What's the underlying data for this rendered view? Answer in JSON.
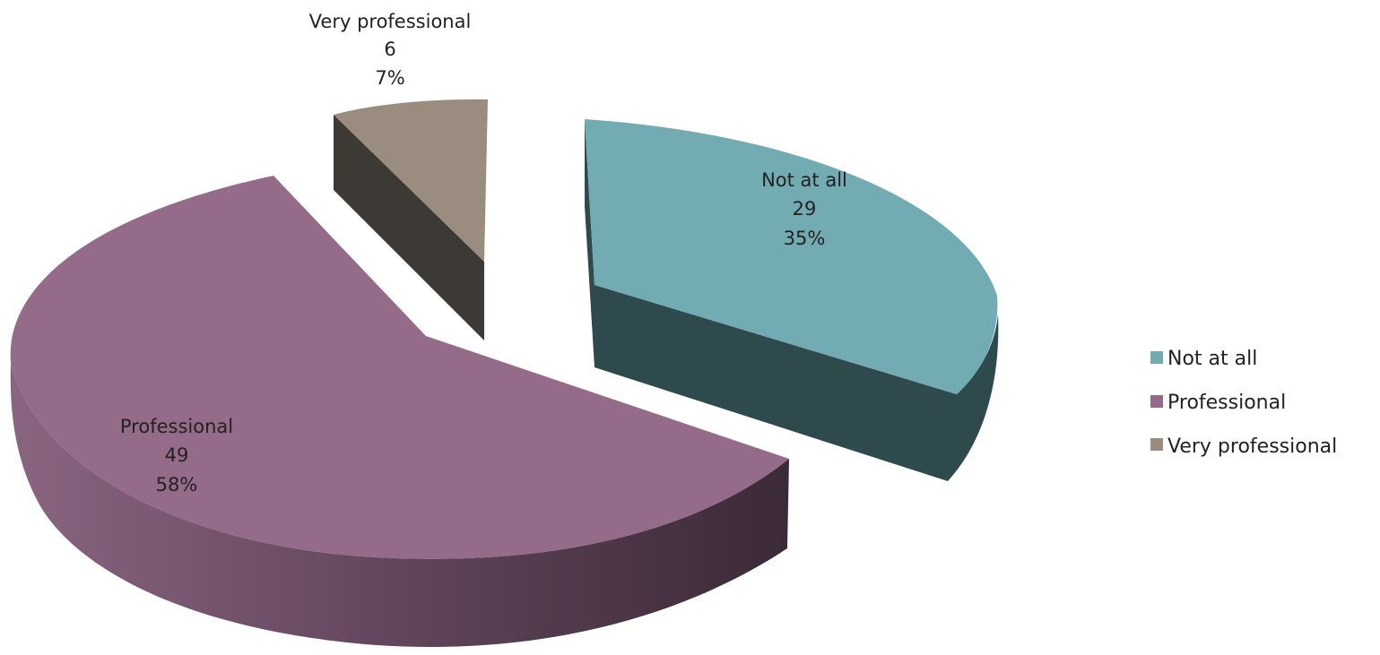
{
  "chart_data": {
    "type": "pie",
    "style": "3d-exploded",
    "legend_position": "right",
    "categories": [
      "Not at all",
      "Professional",
      "Very professional"
    ],
    "values": [
      29,
      49,
      6
    ],
    "percentages": [
      "35%",
      "58%",
      "7%"
    ],
    "value_labels": [
      "29",
      "49",
      "6"
    ],
    "colors": {
      "Not at all": "#73abb3",
      "Professional": "#946b89",
      "Very professional": "#9a8d80"
    }
  }
}
